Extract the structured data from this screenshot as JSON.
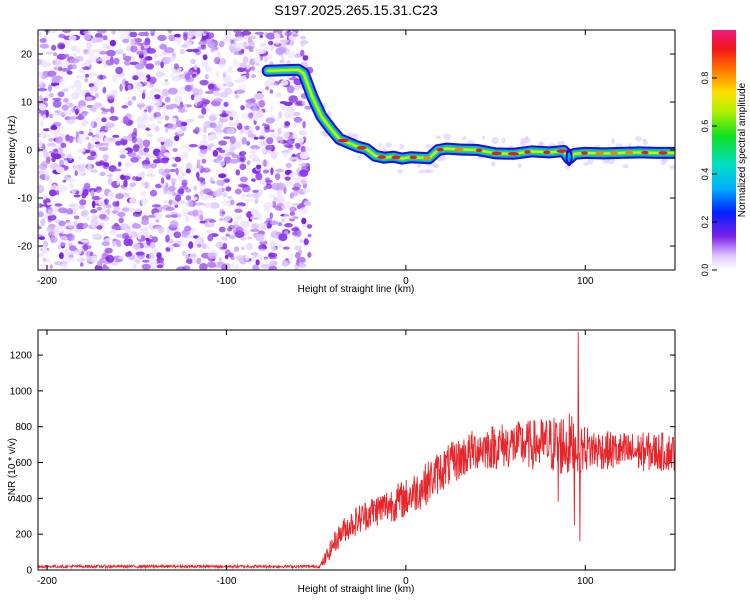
{
  "title": "S197.2025.265.15.31.C23",
  "colors": {
    "snr_line": "#e8252a",
    "track_core": "#e02020",
    "noise": "#7a1fe6",
    "axes": "#000000"
  },
  "chart_data": [
    {
      "type": "heatmap",
      "name": "spectrogram",
      "xlabel": "Height of straight line (km)",
      "ylabel": "Frequency (Hz)",
      "xlim": [
        -205,
        150
      ],
      "ylim": [
        -25,
        25
      ],
      "xticks": [
        -200,
        -100,
        0,
        100
      ],
      "yticks": [
        -20,
        -10,
        0,
        10,
        20
      ],
      "noise_region_x": [
        -205,
        -57
      ],
      "track": {
        "x": [
          -77,
          -60,
          -57,
          -52,
          -47,
          -42,
          -37,
          -32,
          -27,
          -22,
          -17,
          -12,
          -7,
          -2,
          3,
          8,
          13,
          18,
          23,
          30,
          40,
          50,
          60,
          70,
          80,
          88,
          91,
          94,
          100,
          110,
          120,
          130,
          140,
          150
        ],
        "y": [
          16.5,
          16.7,
          16.0,
          11.0,
          7.0,
          4.5,
          2.3,
          1.5,
          0.7,
          0.2,
          -1.2,
          -1.6,
          -1.4,
          -1.8,
          -1.5,
          -1.6,
          -1.7,
          0.0,
          0.3,
          0.1,
          0.0,
          -0.7,
          -0.8,
          -0.3,
          -0.5,
          -0.2,
          -1.8,
          -0.8,
          -0.6,
          -0.7,
          -0.6,
          -0.5,
          -0.6,
          -0.6
        ]
      },
      "colorbar": {
        "label": "Normalized spectral amplitude",
        "range": [
          0.0,
          1.0
        ],
        "ticks": [
          "0.0",
          "0.2",
          "0.4",
          "0.6",
          "0.8"
        ]
      }
    },
    {
      "type": "line",
      "name": "snr",
      "xlabel": "Height of straight line (km)",
      "ylabel": "SNR (10 * v/v)",
      "xlim": [
        -205,
        150
      ],
      "ylim": [
        0,
        1340
      ],
      "xticks": [
        -200,
        -100,
        0,
        100
      ],
      "yticks": [
        0,
        200,
        400,
        600,
        800,
        1000,
        1200
      ],
      "series": [
        {
          "name": "SNR",
          "envelope_x": [
            -205,
            -48,
            -45,
            -40,
            -35,
            -30,
            -20,
            -10,
            0,
            10,
            20,
            30,
            40,
            50,
            60,
            70,
            80,
            90,
            100,
            110,
            120,
            130,
            140,
            150
          ],
          "envelope_y": [
            20,
            20,
            60,
            150,
            220,
            260,
            320,
            360,
            400,
            470,
            560,
            620,
            680,
            690,
            700,
            700,
            700,
            700,
            680,
            670,
            660,
            660,
            660,
            660
          ],
          "noise_amplitude": [
            8,
            8,
            40,
            60,
            70,
            80,
            90,
            100,
            110,
            120,
            120,
            120,
            120,
            130,
            130,
            140,
            160,
            190,
            130,
            110,
            110,
            110,
            110,
            110
          ],
          "peaks": [
            {
              "x": 96,
              "y": 1330
            },
            {
              "x": 97,
              "y": 160
            },
            {
              "x": 94,
              "y": 250
            },
            {
              "x": 85,
              "y": 380
            }
          ]
        }
      ]
    }
  ]
}
